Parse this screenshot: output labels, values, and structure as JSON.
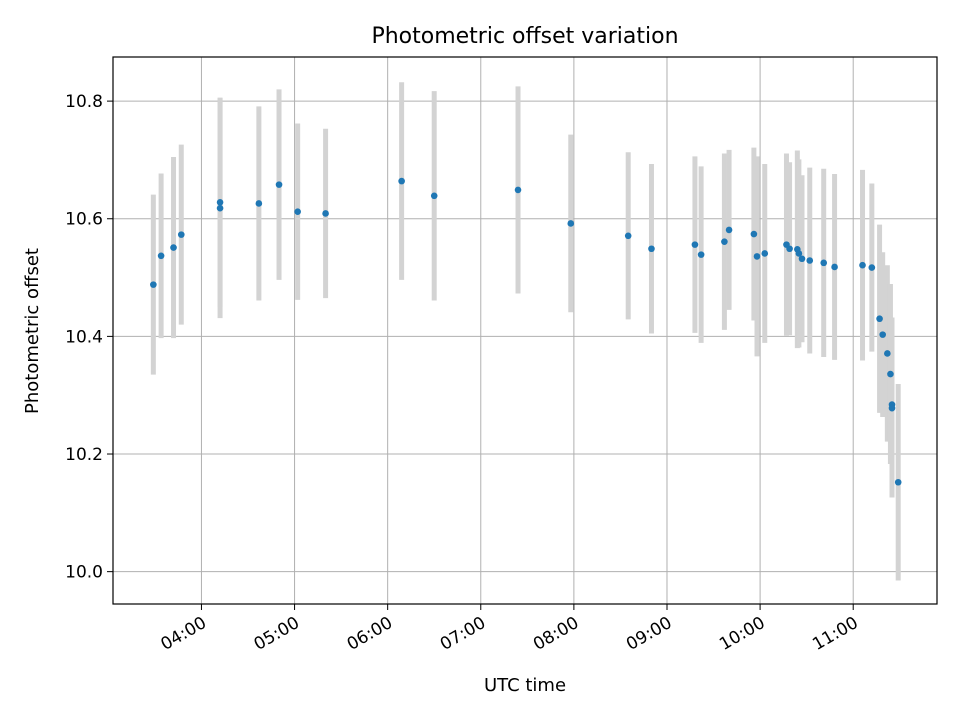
{
  "chart_data": {
    "type": "scatter",
    "title": "Photometric offset variation",
    "xlabel": "UTC time",
    "ylabel": "Photometric offset",
    "grid": true,
    "legend": "none",
    "x_tick_labels": [
      "04:00",
      "05:00",
      "06:00",
      "07:00",
      "08:00",
      "09:00",
      "10:00",
      "11:00"
    ],
    "x_tick_hours": [
      4,
      5,
      6,
      7,
      8,
      9,
      10,
      11
    ],
    "y_ticks": [
      10.0,
      10.2,
      10.4,
      10.6,
      10.8
    ],
    "y_tick_labels": [
      "10.0",
      "10.2",
      "10.4",
      "10.6",
      "10.8"
    ],
    "xlim": [
      "03:03",
      "11:54"
    ],
    "ylim": [
      9.945,
      10.875
    ],
    "marker_color": "#1f77b4",
    "errorbar_color": "#d3d3d3",
    "points": [
      {
        "time": "03:29",
        "y": 10.488,
        "err": 0.153
      },
      {
        "time": "03:34",
        "y": 10.537,
        "err": 0.14
      },
      {
        "time": "03:42",
        "y": 10.551,
        "err": 0.154
      },
      {
        "time": "03:47",
        "y": 10.573,
        "err": 0.153
      },
      {
        "time": "04:12",
        "y": 10.618,
        "err": 0.187
      },
      {
        "time": "04:12",
        "y": 10.628,
        "err": 0.178
      },
      {
        "time": "04:37",
        "y": 10.626,
        "err": 0.165
      },
      {
        "time": "04:50",
        "y": 10.658,
        "err": 0.162
      },
      {
        "time": "05:02",
        "y": 10.612,
        "err": 0.15
      },
      {
        "time": "05:20",
        "y": 10.609,
        "err": 0.144
      },
      {
        "time": "06:09",
        "y": 10.664,
        "err": 0.168
      },
      {
        "time": "06:30",
        "y": 10.639,
        "err": 0.178
      },
      {
        "time": "07:24",
        "y": 10.649,
        "err": 0.176
      },
      {
        "time": "07:58",
        "y": 10.592,
        "err": 0.151
      },
      {
        "time": "08:35",
        "y": 10.571,
        "err": 0.142
      },
      {
        "time": "08:50",
        "y": 10.549,
        "err": 0.144
      },
      {
        "time": "09:18",
        "y": 10.556,
        "err": 0.15
      },
      {
        "time": "09:22",
        "y": 10.539,
        "err": 0.15
      },
      {
        "time": "09:37",
        "y": 10.561,
        "err": 0.15
      },
      {
        "time": "09:40",
        "y": 10.581,
        "err": 0.136
      },
      {
        "time": "09:56",
        "y": 10.574,
        "err": 0.147
      },
      {
        "time": "09:58",
        "y": 10.536,
        "err": 0.17
      },
      {
        "time": "10:03",
        "y": 10.541,
        "err": 0.152
      },
      {
        "time": "10:17",
        "y": 10.556,
        "err": 0.155
      },
      {
        "time": "10:19",
        "y": 10.549,
        "err": 0.147
      },
      {
        "time": "10:24",
        "y": 10.548,
        "err": 0.168
      },
      {
        "time": "10:25",
        "y": 10.541,
        "err": 0.16
      },
      {
        "time": "10:27",
        "y": 10.532,
        "err": 0.142
      },
      {
        "time": "10:32",
        "y": 10.529,
        "err": 0.158
      },
      {
        "time": "10:41",
        "y": 10.525,
        "err": 0.16
      },
      {
        "time": "10:48",
        "y": 10.518,
        "err": 0.158
      },
      {
        "time": "11:06",
        "y": 10.521,
        "err": 0.162
      },
      {
        "time": "11:12",
        "y": 10.517,
        "err": 0.143
      },
      {
        "time": "11:17",
        "y": 10.43,
        "err": 0.16
      },
      {
        "time": "11:19",
        "y": 10.403,
        "err": 0.14
      },
      {
        "time": "11:22",
        "y": 10.371,
        "err": 0.15
      },
      {
        "time": "11:24",
        "y": 10.336,
        "err": 0.153
      },
      {
        "time": "11:25",
        "y": 10.284,
        "err": 0.148
      },
      {
        "time": "11:25",
        "y": 10.278,
        "err": 0.152
      },
      {
        "time": "11:29",
        "y": 10.152,
        "err": 0.167
      }
    ]
  }
}
